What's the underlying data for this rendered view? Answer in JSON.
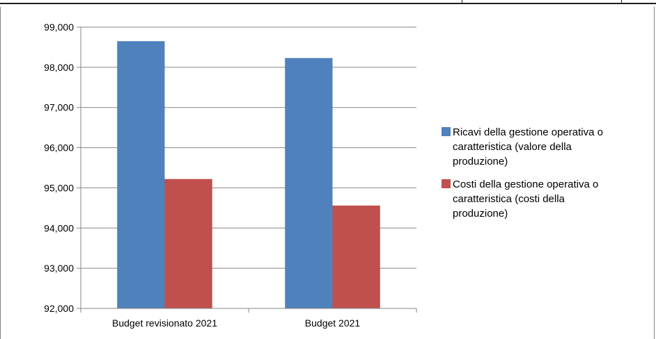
{
  "chart_data": {
    "type": "bar",
    "categories": [
      "Budget revisionato 2021",
      "Budget 2021"
    ],
    "series": [
      {
        "name": "Ricavi della gestione operativa o caratteristica (valore della produzione)",
        "values": [
          98650,
          98230
        ],
        "color": "#4f81bd"
      },
      {
        "name": "Costi della gestione operativa o caratteristica (costi della produzione)",
        "values": [
          95220,
          94560
        ],
        "color": "#c0504d"
      }
    ],
    "ylim": [
      92000,
      99000
    ],
    "yticks": [
      92000,
      93000,
      94000,
      95000,
      96000,
      97000,
      98000,
      99000
    ],
    "ytick_labels": [
      "92,000",
      "93,000",
      "94,000",
      "95,000",
      "96,000",
      "97,000",
      "98,000",
      "99,000"
    ],
    "grid": true,
    "legend_position": "right",
    "title": "",
    "xlabel": "",
    "ylabel": ""
  },
  "legend": [
    {
      "lines": [
        "Ricavi della gestione operativa o",
        "caratteristica (valore della",
        "produzione)"
      ],
      "color": "#4f81bd"
    },
    {
      "lines": [
        "Costi della gestione operativa o",
        "caratteristica (costi della",
        "produzione)"
      ],
      "color": "#c0504d"
    }
  ]
}
